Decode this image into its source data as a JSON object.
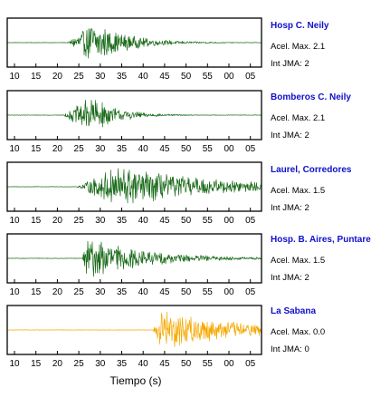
{
  "chart_data": {
    "type": "line",
    "xlabel": "Tiempo (s)",
    "x_tick_labels": [
      "10",
      "15",
      "20",
      "25",
      "30",
      "35",
      "40",
      "45",
      "50",
      "55",
      "00",
      "05"
    ],
    "panels": [
      {
        "name": "Hosp C. Neily",
        "accel_label": "Acel. Max. 2.1",
        "int_label": "Int JMA: 2",
        "color": "#1a6b1a",
        "onset_s": 19,
        "peak_s": 25,
        "decay_s": 8,
        "peak_amp": 0.95,
        "duration_s": 52
      },
      {
        "name": "Bomberos C. Neily",
        "accel_label": "Acel. Max. 2.1",
        "int_label": "Int JMA: 2",
        "color": "#1a6b1a",
        "onset_s": 18,
        "peak_s": 24.5,
        "decay_s": 6,
        "peak_amp": 0.9,
        "duration_s": 46
      },
      {
        "name": "Laurel, Corredores",
        "accel_label": "Acel. Max. 1.5",
        "int_label": "Int JMA: 2",
        "color": "#1a6b1a",
        "onset_s": 21,
        "peak_s": 31,
        "decay_s": 22,
        "peak_amp": 0.95,
        "duration_s": 70
      },
      {
        "name": "Hosp. B. Aires, Puntare",
        "accel_label": "Acel. Max. 1.5",
        "int_label": "Int JMA: 2",
        "color": "#1a6b1a",
        "onset_s": 22.5,
        "peak_s": 23.5,
        "decay_s": 14,
        "peak_amp": 0.95,
        "duration_s": 55
      },
      {
        "name": "La Sabana",
        "accel_label": "Acel. Max. 0.0",
        "int_label": "Int JMA: 0",
        "color": "#f5a800",
        "onset_s": 39,
        "peak_s": 41,
        "decay_s": 18,
        "peak_amp": 0.95,
        "duration_s": 70
      }
    ]
  }
}
